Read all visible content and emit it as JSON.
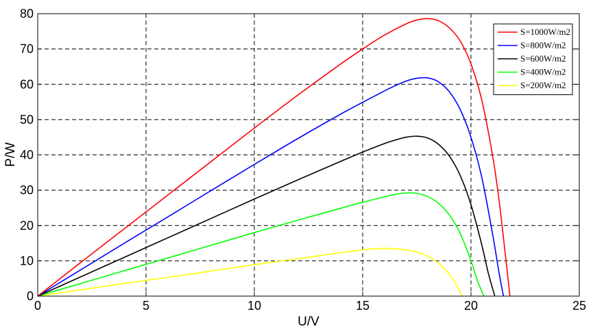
{
  "chart_data": {
    "type": "line",
    "title": "",
    "xlabel": "U/V",
    "ylabel": "P/W",
    "xlim": [
      0,
      25
    ],
    "ylim": [
      0,
      80
    ],
    "xticks": [
      0,
      5,
      10,
      15,
      20,
      25
    ],
    "yticks": [
      0,
      10,
      20,
      30,
      40,
      50,
      60,
      70,
      80
    ],
    "grid": true,
    "legend_position": "top-right",
    "series": [
      {
        "name": "S=1000W/m2",
        "color": "#ff0000",
        "x": [
          0,
          2,
          4,
          6,
          8,
          10,
          12,
          14,
          15,
          16,
          17,
          17.5,
          18,
          18.5,
          19,
          19.5,
          20,
          20.5,
          21,
          21.3,
          21.6,
          21.8
        ],
        "y": [
          0,
          9.6,
          19.1,
          28.6,
          38.1,
          47.6,
          56.9,
          65.8,
          70,
          73.9,
          77.1,
          78.2,
          78.6,
          78,
          76,
          72.3,
          65.8,
          55.5,
          39.7,
          27,
          11,
          0
        ]
      },
      {
        "name": "S=800W/m2",
        "color": "#0000ff",
        "x": [
          0,
          2,
          4,
          6,
          8,
          10,
          12,
          14,
          15,
          16,
          16.5,
          17,
          17.5,
          18,
          18.5,
          19,
          19.5,
          20,
          20.5,
          21,
          21.3,
          21.5
        ],
        "y": [
          0,
          7.5,
          15,
          22.4,
          29.9,
          37.3,
          44.6,
          51.6,
          54.9,
          58.1,
          59.6,
          60.9,
          61.7,
          61.8,
          60.7,
          57.9,
          52.9,
          45,
          33.6,
          17.5,
          6.5,
          0
        ]
      },
      {
        "name": "S=600W/m2",
        "color": "#000000",
        "x": [
          0,
          2,
          4,
          6,
          8,
          10,
          12,
          14,
          15,
          16,
          16.5,
          17,
          17.5,
          18,
          18.5,
          19,
          19.5,
          20,
          20.5,
          20.8,
          21.1
        ],
        "y": [
          0,
          5.5,
          11,
          16.5,
          22,
          27.5,
          32.9,
          38.2,
          40.8,
          43.2,
          44.2,
          45,
          45.3,
          44.8,
          43,
          39.7,
          34.2,
          25.9,
          14.5,
          6.5,
          0
        ]
      },
      {
        "name": "S=400W/m2",
        "color": "#00ff00",
        "x": [
          0,
          2,
          4,
          6,
          8,
          10,
          12,
          14,
          15,
          16,
          16.5,
          17,
          17.5,
          18,
          18.5,
          19,
          19.5,
          20,
          20.3,
          20.6
        ],
        "y": [
          0,
          3.6,
          7.2,
          10.8,
          14.4,
          18,
          21.5,
          24.9,
          26.6,
          28.1,
          28.8,
          29.2,
          29.1,
          28.2,
          26.3,
          23,
          17.8,
          10,
          4.3,
          0
        ]
      },
      {
        "name": "S=200W/m2",
        "color": "#ffff00",
        "x": [
          0,
          2,
          4,
          6,
          8,
          10,
          12,
          14,
          15,
          15.5,
          16,
          16.5,
          17,
          17.5,
          18,
          18.5,
          19,
          19.3,
          19.6
        ],
        "y": [
          0,
          1.8,
          3.6,
          5.3,
          7.1,
          8.9,
          10.6,
          12.3,
          13.1,
          13.4,
          13.5,
          13.4,
          13.1,
          12.5,
          11.3,
          9.3,
          6.2,
          3.5,
          0
        ]
      }
    ]
  }
}
